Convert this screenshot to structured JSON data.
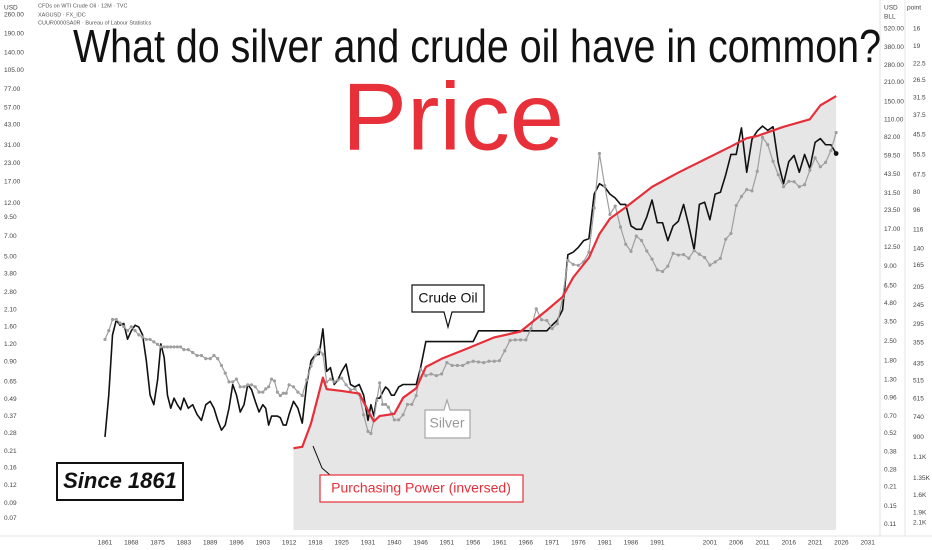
{
  "chart_data": {
    "type": "line",
    "title": "What do silver and crude oil have in common?",
    "subtitle": "Price",
    "header": [
      "CFDs on WTI Crude Oil · 12M · TVC",
      "XAGUSD · FX_IDC",
      "CUUR0000SA0R · Bureau of Labour Statistics"
    ],
    "ylabel": "USD",
    "y2label": "USD",
    "y2unit": "BLL",
    "y3label": "point",
    "log_scale": true,
    "y3_inverted": true,
    "grid": false,
    "xticks": [
      1861,
      1868,
      1875,
      1883,
      1889,
      1896,
      1903,
      1912,
      1918,
      1925,
      1931,
      1940,
      1946,
      1951,
      1956,
      1961,
      1966,
      1971,
      1976,
      1981,
      1986,
      1991,
      2001,
      2006,
      2011,
      2016,
      2021,
      2026,
      2031
    ],
    "ylim": [
      0.058,
      290
    ],
    "yticks": [
      {
        "value": 260,
        "label": "260.00"
      },
      {
        "value": 190,
        "label": "190.00"
      },
      {
        "value": 140,
        "label": "140.00"
      },
      {
        "value": 105,
        "label": "105.00"
      },
      {
        "value": 77,
        "label": "77.00"
      },
      {
        "value": 57,
        "label": "57.00"
      },
      {
        "value": 43,
        "label": "43.00"
      },
      {
        "value": 31,
        "label": "31.00"
      },
      {
        "value": 23,
        "label": "23.00"
      },
      {
        "value": 17,
        "label": "17.00"
      },
      {
        "value": 12,
        "label": "12.00"
      },
      {
        "value": 9.5,
        "label": "9.50"
      },
      {
        "value": 7,
        "label": "7.00"
      },
      {
        "value": 5,
        "label": "5.00"
      },
      {
        "value": 3.8,
        "label": "3.80"
      },
      {
        "value": 2.8,
        "label": "2.80"
      },
      {
        "value": 2.1,
        "label": "2.10"
      },
      {
        "value": 1.6,
        "label": "1.60"
      },
      {
        "value": 1.2,
        "label": "1.20"
      },
      {
        "value": 0.9,
        "label": "0.90"
      },
      0.65,
      0.49,
      0.37,
      0.28,
      0.21,
      0.16,
      0.12,
      0.09,
      0.07
    ],
    "y2lim": [
      0.1,
      744
    ],
    "y2ticks": [
      {
        "value": 520,
        "label": "520.00"
      },
      {
        "value": 380,
        "label": "380.00"
      },
      {
        "value": 280,
        "label": "280.00"
      },
      {
        "value": 210,
        "label": "210.00"
      },
      {
        "value": 150,
        "label": "150.00"
      },
      {
        "value": 110,
        "label": "110.00"
      },
      {
        "value": 82,
        "label": "82.00"
      },
      {
        "value": 59.5,
        "label": "59.50"
      },
      {
        "value": 43.5,
        "label": "43.50"
      },
      {
        "value": 31.5,
        "label": "31.50"
      },
      {
        "value": 23.5,
        "label": "23.50"
      },
      {
        "value": 17,
        "label": "17.00"
      },
      {
        "value": 12.5,
        "label": "12.50"
      },
      {
        "value": 9,
        "label": "9.00"
      },
      {
        "value": 6.5,
        "label": "6.50"
      },
      {
        "value": 4.8,
        "label": "4.80"
      },
      {
        "value": 3.5,
        "label": "3.50"
      },
      {
        "value": 2.5,
        "label": "2.50"
      },
      {
        "value": 1.8,
        "label": "1.80"
      },
      {
        "value": 1.3,
        "label": "1.30"
      },
      0.96,
      {
        "value": 0.7,
        "label": "0.70"
      },
      0.52,
      0.38,
      0.28,
      0.21,
      0.15,
      0.11
    ],
    "y3lim": [
      13,
      2250
    ],
    "y3ticks": [
      16,
      19,
      22.5,
      26.5,
      31.5,
      37.5,
      45.5,
      55.5,
      67.5,
      80,
      96,
      116,
      140,
      165,
      205,
      245,
      295,
      355,
      435,
      515,
      615,
      740,
      900,
      {
        "value": 1100,
        "label": "1.1K"
      },
      {
        "value": 1350,
        "label": "1.35K"
      },
      {
        "value": 1600,
        "label": "1.6K"
      },
      {
        "value": 1900,
        "label": "1.9K"
      },
      {
        "value": 2100,
        "label": "2.1K"
      }
    ],
    "series": [
      {
        "name": "Crude Oil",
        "color": "#111111",
        "axis": "y2",
        "x": [
          1861,
          1862,
          1863,
          1864,
          1865,
          1866,
          1867,
          1868,
          1869,
          1870,
          1871,
          1872,
          1873,
          1874,
          1875,
          1876,
          1877,
          1878,
          1879,
          1880,
          1881,
          1882,
          1883,
          1884,
          1885,
          1886,
          1887,
          1888,
          1889,
          1890,
          1891,
          1892,
          1893,
          1894,
          1895,
          1896,
          1897,
          1898,
          1899,
          1900,
          1901,
          1902,
          1903,
          1904,
          1905,
          1906,
          1907,
          1908,
          1909,
          1910,
          1911,
          1912,
          1913,
          1914,
          1915,
          1916,
          1917,
          1918,
          1919,
          1920,
          1921,
          1922,
          1923,
          1924,
          1925,
          1926,
          1927,
          1928,
          1929,
          1930,
          1931,
          1932,
          1933,
          1934,
          1935,
          1936,
          1937,
          1938,
          1939,
          1940,
          1941,
          1942,
          1943,
          1944,
          1945,
          1946,
          1947,
          1948,
          1949,
          1950,
          1951,
          1952,
          1953,
          1954,
          1955,
          1956,
          1957,
          1958,
          1959,
          1960,
          1961,
          1962,
          1963,
          1964,
          1965,
          1966,
          1967,
          1968,
          1969,
          1970,
          1971,
          1972,
          1973,
          1974,
          1975,
          1976,
          1977,
          1978,
          1979,
          1980,
          1981,
          1982,
          1983,
          1984,
          1985,
          1986,
          1987,
          1988,
          1989,
          1990,
          1991,
          1992,
          1993,
          1994,
          1995,
          1996,
          1997,
          1998,
          1999,
          2000,
          2001,
          2002,
          2003,
          2004,
          2005,
          2006,
          2007,
          2008,
          2009,
          2010,
          2011,
          2012,
          2013,
          2014,
          2015,
          2016,
          2017,
          2018,
          2019,
          2020,
          2021,
          2022,
          2023,
          2024,
          2025
        ],
        "values": [
          0.49,
          1.0,
          2.8,
          3.6,
          3.3,
          3.4,
          2.6,
          3.0,
          3.3,
          3.2,
          2.8,
          1.8,
          1.0,
          0.85,
          1.3,
          2.4,
          1.9,
          1.0,
          0.8,
          0.95,
          0.85,
          0.78,
          0.95,
          0.8,
          0.85,
          0.72,
          0.65,
          0.85,
          0.9,
          0.8,
          0.65,
          0.55,
          0.6,
          0.8,
          1.2,
          1.0,
          0.75,
          0.85,
          1.2,
          1.1,
          0.9,
          0.75,
          0.85,
          0.8,
          0.6,
          0.7,
          0.7,
          0.7,
          0.68,
          0.6,
          0.6,
          0.72,
          0.9,
          0.8,
          0.62,
          1.2,
          1.8,
          2.0,
          2.0,
          3.1,
          1.5,
          1.6,
          1.2,
          1.3,
          1.5,
          1.7,
          1.2,
          1.15,
          1.2,
          1.0,
          0.65,
          0.85,
          0.7,
          0.95,
          0.95,
          1.05,
          1.15,
          1.1,
          1.0,
          1.0,
          1.15,
          1.2,
          1.2,
          1.2,
          1.2,
          1.6,
          2.5,
          2.5,
          2.5,
          2.5,
          2.5,
          2.5,
          2.5,
          2.5,
          2.5,
          2.5,
          3.0,
          3.0,
          3.0,
          3.0,
          3.0,
          3.0,
          3.0,
          3.0,
          3.0,
          3.0,
          3.0,
          3.0,
          3.0,
          3.0,
          3.3,
          3.6,
          4.3,
          11,
          11.5,
          12.5,
          14,
          14.5,
          31,
          37,
          35,
          31,
          29,
          26,
          26,
          18,
          17,
          17,
          21,
          28,
          19,
          19,
          14,
          18,
          19.5,
          26,
          18,
          12,
          26,
          27,
          20,
          31,
          32,
          43,
          61,
          61,
          96,
          45,
          79,
          91,
          99,
          92,
          98,
          53,
          37,
          54,
          60,
          45,
          61,
          48,
          75,
          80,
          72,
          72,
          62
        ]
      },
      {
        "name": "Silver",
        "color": "#9e9e9e",
        "axis": "y",
        "x": [
          1861,
          1862,
          1863,
          1864,
          1865,
          1866,
          1867,
          1868,
          1869,
          1870,
          1871,
          1872,
          1873,
          1874,
          1875,
          1876,
          1877,
          1878,
          1879,
          1880,
          1881,
          1882,
          1883,
          1884,
          1885,
          1886,
          1887,
          1888,
          1889,
          1890,
          1891,
          1892,
          1893,
          1894,
          1895,
          1896,
          1897,
          1898,
          1899,
          1900,
          1901,
          1902,
          1903,
          1904,
          1905,
          1906,
          1907,
          1908,
          1909,
          1910,
          1911,
          1912,
          1913,
          1914,
          1915,
          1916,
          1917,
          1918,
          1919,
          1920,
          1921,
          1922,
          1923,
          1924,
          1925,
          1926,
          1927,
          1928,
          1929,
          1930,
          1931,
          1932,
          1933,
          1934,
          1935,
          1936,
          1937,
          1938,
          1939,
          1940,
          1941,
          1942,
          1943,
          1944,
          1945,
          1946,
          1947,
          1948,
          1949,
          1950,
          1951,
          1952,
          1953,
          1954,
          1955,
          1956,
          1957,
          1958,
          1959,
          1960,
          1961,
          1962,
          1963,
          1964,
          1965,
          1966,
          1967,
          1968,
          1969,
          1970,
          1971,
          1972,
          1973,
          1974,
          1975,
          1976,
          1977,
          1978,
          1979,
          1980,
          1981,
          1982,
          1983,
          1984,
          1985,
          1986,
          1987,
          1988,
          1989,
          1990,
          1991,
          1992,
          1993,
          1994,
          1995,
          1996,
          1997,
          1998,
          1999,
          2000,
          2001,
          2002,
          2003,
          2004,
          2005,
          2006,
          2007,
          2008,
          2009,
          2010,
          2011,
          2012,
          2013,
          2014,
          2015,
          2016,
          2017,
          2018,
          2019,
          2020,
          2021,
          2022,
          2023,
          2024,
          2025
        ],
        "values": [
          1.3,
          1.5,
          1.8,
          1.8,
          1.7,
          1.6,
          1.5,
          1.6,
          1.5,
          1.4,
          1.35,
          1.3,
          1.3,
          1.25,
          1.2,
          1.15,
          1.15,
          1.15,
          1.15,
          1.15,
          1.15,
          1.15,
          1.1,
          1.1,
          1.05,
          1.0,
          1.0,
          0.95,
          0.95,
          1.0,
          0.95,
          0.85,
          0.75,
          0.65,
          0.65,
          0.68,
          0.6,
          0.6,
          0.62,
          0.62,
          0.6,
          0.55,
          0.55,
          0.58,
          0.6,
          0.68,
          0.66,
          0.55,
          0.52,
          0.54,
          0.54,
          0.62,
          0.6,
          0.55,
          0.52,
          0.67,
          0.84,
          1.0,
          1.1,
          1.02,
          0.65,
          0.68,
          0.65,
          0.67,
          0.69,
          0.62,
          0.57,
          0.58,
          0.53,
          0.38,
          0.29,
          0.28,
          0.35,
          0.48,
          0.64,
          0.45,
          0.45,
          0.43,
          0.39,
          0.35,
          0.35,
          0.38,
          0.45,
          0.45,
          0.52,
          0.8,
          0.72,
          0.74,
          0.72,
          0.74,
          0.89,
          0.85,
          0.85,
          0.85,
          0.89,
          0.91,
          0.9,
          0.89,
          0.91,
          0.91,
          0.92,
          1.08,
          1.28,
          1.29,
          1.29,
          1.29,
          1.55,
          2.14,
          1.79,
          1.77,
          1.55,
          1.68,
          2.56,
          4.71,
          4.42,
          4.35,
          4.62,
          5.4,
          11.09,
          27,
          16,
          10,
          11.44,
          8.14,
          6.14,
          5.47,
          7.01,
          6.53,
          5.5,
          4.82,
          4.04,
          3.94,
          4.3,
          5.29,
          5.15,
          5.19,
          4.89,
          5.54,
          5.22,
          4.95,
          4.37,
          4.6,
          4.88,
          6.67,
          7.32,
          11.55,
          13.38,
          14.99,
          14.67,
          20.19,
          35.12,
          31.15,
          23.79,
          19.08,
          15.68,
          17.14,
          17.05,
          15.71,
          16.21,
          20.55,
          25.14,
          21.73,
          23.35,
          28.27,
          38
        ]
      },
      {
        "name": "Purchasing Power (inversed)",
        "color": "#e5303a",
        "axis": "y3",
        "fill": "#e6e6e6",
        "x": [
          1913,
          1915,
          1917,
          1918,
          1920,
          1921,
          1925,
          1929,
          1932,
          1933,
          1935,
          1940,
          1942,
          1945,
          1947,
          1950,
          1955,
          1960,
          1965,
          1970,
          1973,
          1975,
          1978,
          1980,
          1982,
          1985,
          1990,
          1995,
          2000,
          2005,
          2008,
          2010,
          2015,
          2020,
          2022,
          2025
        ],
        "values": [
          1004,
          990,
          785,
          665,
          500,
          560,
          570,
          585,
          730,
          770,
          730,
          715,
          610,
          555,
          450,
          415,
          374,
          336,
          317,
          257,
          225,
          186,
          153,
          121,
          104,
          93,
          76,
          66,
          58,
          51,
          47,
          46,
          42,
          39,
          34,
          31
        ]
      }
    ],
    "annotations": [
      "Since 1861"
    ]
  }
}
